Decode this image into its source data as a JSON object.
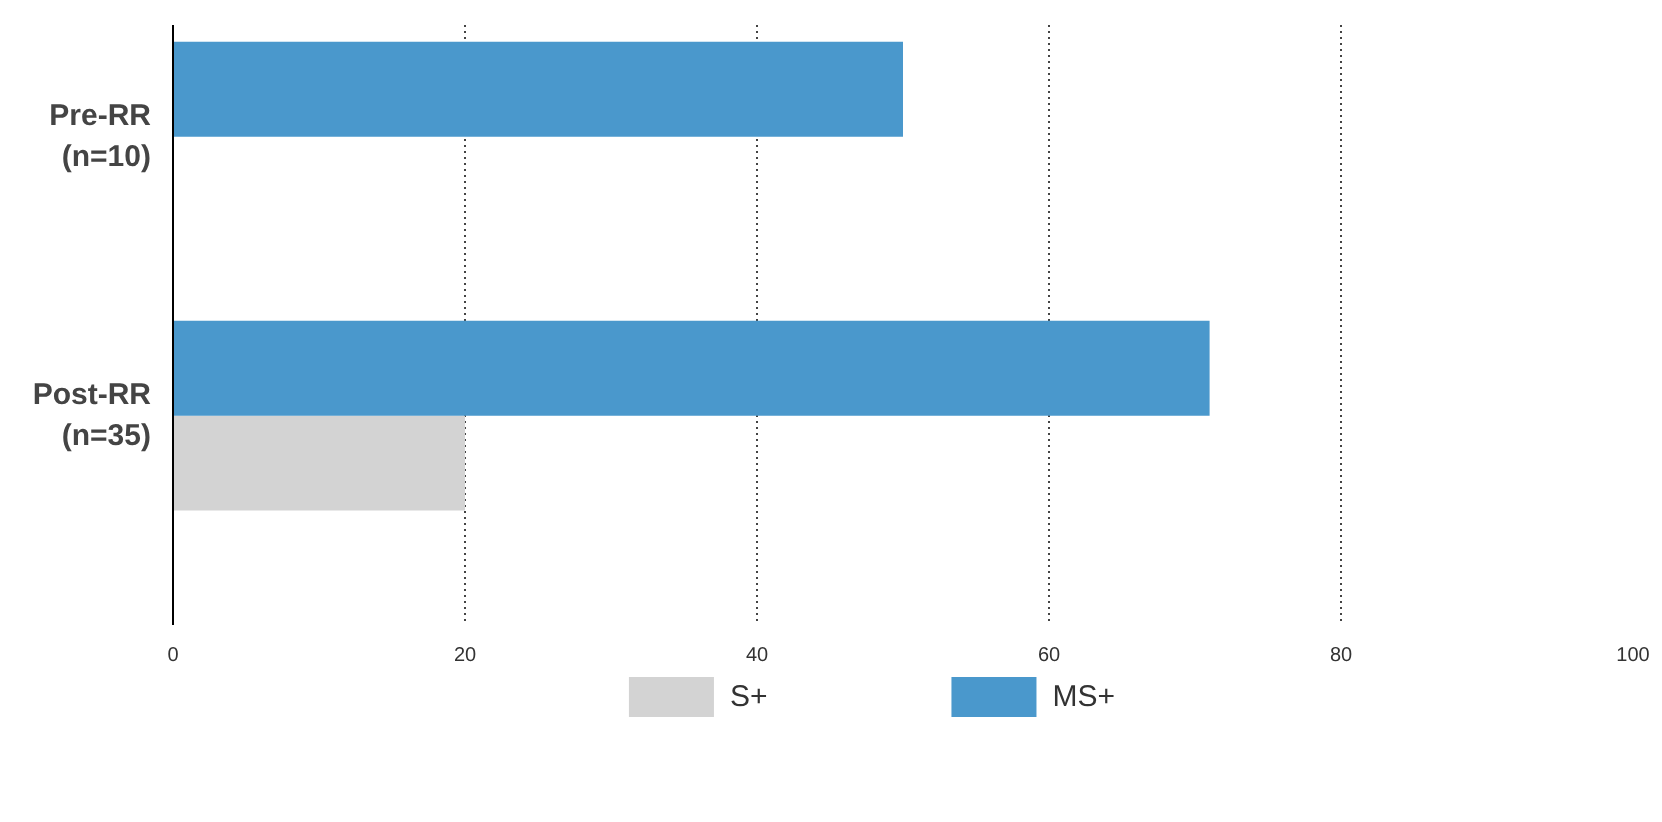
{
  "chart_data": {
    "type": "bar",
    "orientation": "horizontal",
    "categories": [
      "Pre-RR\n(n=10)",
      "Post-RR\n(n=35)"
    ],
    "series": [
      {
        "name": "S+",
        "color": "#d3d3d3",
        "values": [
          null,
          20
        ]
      },
      {
        "name": "MS+",
        "color": "#4a98cc",
        "values": [
          50,
          71
        ]
      }
    ],
    "xlim": [
      0,
      100
    ],
    "xticks": [
      0,
      20,
      40,
      60,
      80,
      100
    ],
    "grid": "x",
    "legend": "bottom"
  }
}
